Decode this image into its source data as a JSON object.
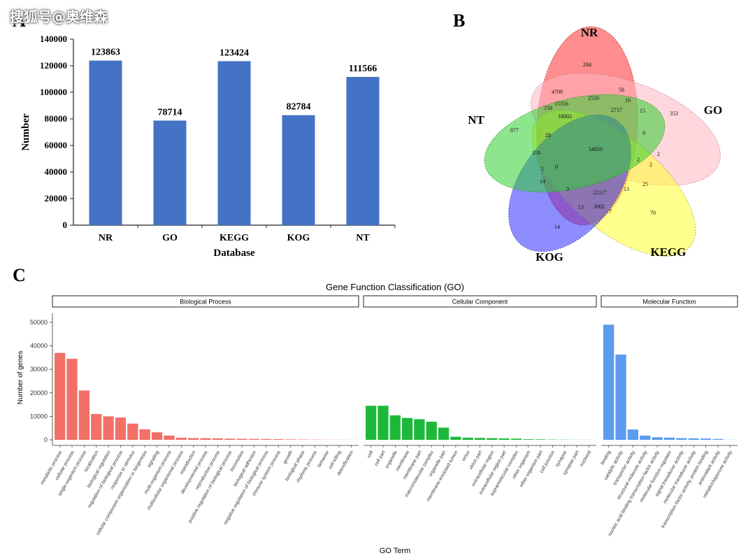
{
  "watermark": "搜狐号@奥维森",
  "panels": {
    "a": "A",
    "b": "B",
    "c": "C"
  },
  "chart_data": [
    {
      "type": "bar",
      "title": "",
      "xlabel": "Database",
      "ylabel": "Number",
      "categories": [
        "NR",
        "GO",
        "KEGG",
        "KOG",
        "NT"
      ],
      "values": [
        123863,
        78714,
        123424,
        82784,
        111566
      ],
      "ylim": [
        0,
        140000
      ],
      "yticks": [
        0,
        20000,
        40000,
        60000,
        80000,
        100000,
        120000,
        140000
      ],
      "color": "#4472c4",
      "grid": false
    },
    {
      "type": "venn",
      "sets": [
        {
          "name": "NR",
          "color": "#ff3030"
        },
        {
          "name": "GO",
          "color": "#ffb6c1"
        },
        {
          "name": "KEGG",
          "color": "#ffff30"
        },
        {
          "name": "KOG",
          "color": "#3030ff"
        },
        {
          "name": "NT",
          "color": "#30d030"
        }
      ],
      "region_labels": [
        "284",
        "4709",
        "58",
        "2550",
        "16",
        "15356",
        "158",
        "18002",
        "2717",
        "15",
        "353",
        "877",
        "28",
        "0",
        "118",
        "54850",
        "2",
        "2",
        "1",
        "0",
        "2",
        "14",
        "25",
        "3",
        "22117",
        "13",
        "13",
        "3002",
        "7",
        "70",
        "14"
      ]
    },
    {
      "type": "bar",
      "title": "Gene Function Classification (GO)",
      "xlabel": "GO Term",
      "ylabel": "Number of genes",
      "ylim": [
        0,
        52000
      ],
      "yticks": [
        0,
        10000,
        20000,
        30000,
        40000,
        50000
      ],
      "grid": false,
      "facets": [
        {
          "name": "Biological Process",
          "color": "#f27068",
          "categories": [
            "metabolic process",
            "cellular process",
            "single-organism process",
            "localization",
            "biological regulation",
            "regulation of biological process",
            "response to stimulus",
            "cellular component organization or biogenesis",
            "signaling",
            "multi-organism process",
            "multicellular organismal process",
            "reproduction",
            "developmental process",
            "reproductive process",
            "positive regulation of biological process",
            "locomotion",
            "biological adhesion",
            "negative regulation of biological process",
            "immune system process",
            "growth",
            "biological phase",
            "rhythmic process",
            "behavior",
            "cell killing",
            "detoxification"
          ],
          "values": [
            37000,
            34500,
            21000,
            11000,
            10000,
            9500,
            6900,
            4500,
            3200,
            1800,
            900,
            750,
            700,
            600,
            500,
            450,
            400,
            350,
            300,
            200,
            150,
            100,
            80,
            60,
            40
          ]
        },
        {
          "name": "Cellular Component",
          "color": "#1db83a",
          "categories": [
            "cell",
            "cell part",
            "organelle",
            "membrane",
            "membrane part",
            "macromolecular complex",
            "organelle part",
            "membrane-enclosed lumen",
            "virion",
            "virion part",
            "extracellular region",
            "extracellular region part",
            "supramolecular complex",
            "other organism",
            "other organism part",
            "cell junction",
            "synapse",
            "synapse part",
            "nucleoid"
          ],
          "values": [
            14500,
            14500,
            10400,
            9300,
            8800,
            7700,
            5200,
            1300,
            900,
            800,
            700,
            600,
            500,
            250,
            200,
            120,
            80,
            60,
            40
          ]
        },
        {
          "name": "Molecular Function",
          "color": "#5b9bf0",
          "categories": [
            "binding",
            "catalytic activity",
            "transporter activity",
            "structural molecule activity",
            "nucleic acid binding transcription factor activity",
            "molecular function regulator",
            "signal transducer activity",
            "molecular transducer activity",
            "transcription factor activity, protein binding",
            "antioxidant activity",
            "metallochaperone activity"
          ],
          "values": [
            49000,
            36300,
            4400,
            1800,
            1100,
            950,
            700,
            650,
            550,
            350,
            50
          ]
        }
      ]
    }
  ]
}
